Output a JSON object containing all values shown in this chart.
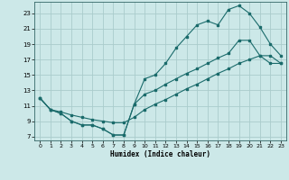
{
  "title": "",
  "xlabel": "Humidex (Indice chaleur)",
  "ylabel": "",
  "xlim": [
    -0.5,
    23.5
  ],
  "ylim": [
    6.5,
    24.5
  ],
  "xticks": [
    0,
    1,
    2,
    3,
    4,
    5,
    6,
    7,
    8,
    9,
    10,
    11,
    12,
    13,
    14,
    15,
    16,
    17,
    18,
    19,
    20,
    21,
    22,
    23
  ],
  "yticks": [
    7,
    9,
    11,
    13,
    15,
    17,
    19,
    21,
    23
  ],
  "background_color": "#cce8e8",
  "grid_color": "#aacccc",
  "line_color": "#1a6b6b",
  "line1_x": [
    0,
    1,
    2,
    3,
    4,
    5,
    6,
    7,
    8,
    9,
    10,
    11,
    12,
    13,
    14,
    15,
    16,
    17,
    18,
    19,
    20,
    21,
    22,
    23
  ],
  "line1_y": [
    12.0,
    10.5,
    10.0,
    9.0,
    8.5,
    8.5,
    8.0,
    7.2,
    7.2,
    11.2,
    14.5,
    15.0,
    16.5,
    18.5,
    20.0,
    21.5,
    22.0,
    21.5,
    23.5,
    24.0,
    23.0,
    21.2,
    19.0,
    17.5
  ],
  "line2_x": [
    0,
    1,
    2,
    3,
    4,
    5,
    6,
    7,
    8,
    9,
    10,
    11,
    12,
    13,
    14,
    15,
    16,
    17,
    18,
    19,
    20,
    21,
    22,
    23
  ],
  "line2_y": [
    12.0,
    10.5,
    10.0,
    9.0,
    8.5,
    8.5,
    8.0,
    7.2,
    7.2,
    11.2,
    12.5,
    13.0,
    13.8,
    14.5,
    15.2,
    15.8,
    16.5,
    17.2,
    17.8,
    19.5,
    19.5,
    17.5,
    17.5,
    16.5
  ],
  "line3_x": [
    0,
    1,
    2,
    3,
    4,
    5,
    6,
    7,
    8,
    9,
    10,
    11,
    12,
    13,
    14,
    15,
    16,
    17,
    18,
    19,
    20,
    21,
    22,
    23
  ],
  "line3_y": [
    12.0,
    10.5,
    10.2,
    9.8,
    9.5,
    9.2,
    9.0,
    8.8,
    8.8,
    9.5,
    10.5,
    11.2,
    11.8,
    12.5,
    13.2,
    13.8,
    14.5,
    15.2,
    15.8,
    16.5,
    17.0,
    17.5,
    16.5,
    16.5
  ],
  "figsize": [
    3.2,
    2.0
  ],
  "dpi": 100
}
